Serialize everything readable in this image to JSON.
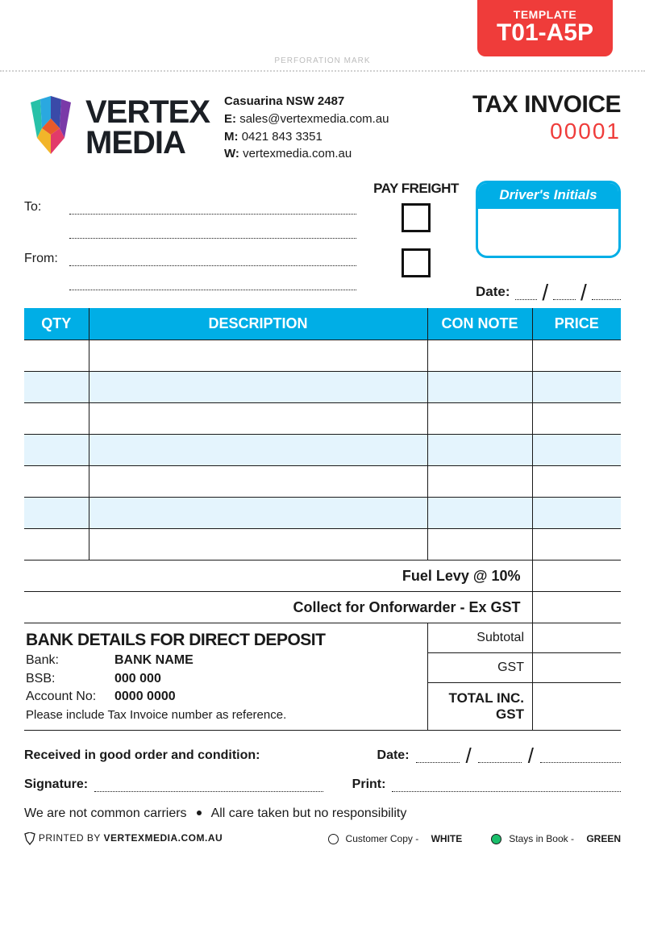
{
  "template_tag": {
    "label": "TEMPLATE",
    "code": "T01-A5P",
    "bg_color": "#ef3c3a"
  },
  "perforation_label": "PERFORATION MARK",
  "company": {
    "name_line1": "VERTEX",
    "name_line2": "MEDIA",
    "location": "Casuarina NSW 2487",
    "email_label": "E:",
    "email": "sales@vertexmedia.com.au",
    "mobile_label": "M:",
    "mobile": "0421 843 3351",
    "web_label": "W:",
    "web": "vertexmedia.com.au"
  },
  "invoice": {
    "title": "TAX INVOICE",
    "number": "00001",
    "number_color": "#ef3c3a"
  },
  "address": {
    "to_label": "To:",
    "from_label": "From:"
  },
  "freight": {
    "label": "PAY FREIGHT"
  },
  "driver_initials_label": "Driver's Initials",
  "date_label": "Date:",
  "accent_color": "#00aee6",
  "alt_row_color": "#e4f4fd",
  "table": {
    "columns": [
      "QTY",
      "DESCRIPTION",
      "CON NOTE",
      "PRICE"
    ],
    "row_count": 7,
    "fuel_levy_label": "Fuel Levy @ 10%",
    "collect_label": "Collect for Onforwarder - Ex GST"
  },
  "bank": {
    "title": "BANK DETAILS FOR DIRECT DEPOSIT",
    "bank_label": "Bank:",
    "bank_value": "BANK NAME",
    "bsb_label": "BSB:",
    "bsb_value": "000 000",
    "acct_label": "Account No:",
    "acct_value": "0000 0000",
    "note": "Please include Tax Invoice number as reference."
  },
  "totals": {
    "subtotal_label": "Subtotal",
    "gst_label": "GST",
    "total_label": "TOTAL INC. GST"
  },
  "footer": {
    "received_label": "Received in good order and condition:",
    "date_label": "Date:",
    "signature_label": "Signature:",
    "print_label": "Print:",
    "disclaimer_a": "We are not common carriers",
    "disclaimer_b": "All care taken but no responsibility"
  },
  "bottom": {
    "printed_prefix": "PRINTED BY",
    "printed_domain": "VERTEXMEDIA.COM.AU",
    "copy_white_a": "Customer Copy -",
    "copy_white_b": "WHITE",
    "copy_green_a": "Stays in Book -",
    "copy_green_b": "GREEN",
    "green_color": "#1bbe6b"
  }
}
